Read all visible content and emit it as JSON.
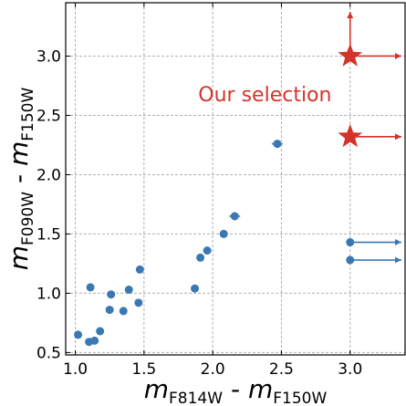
{
  "chart_data": {
    "type": "scatter",
    "xlabel": {
      "main": "m",
      "sub1": "F814W",
      "sep": " - ",
      "main2": "m",
      "sub2": "F150W"
    },
    "ylabel": {
      "main": "m",
      "sub1": "F090W",
      "sep": " - ",
      "main2": "m",
      "sub2": "F150W"
    },
    "xlim": [
      0.93,
      3.4
    ],
    "ylim": [
      0.48,
      3.45
    ],
    "xticks": [
      "1.0",
      "1.5",
      "2.0",
      "2.5",
      "3.0"
    ],
    "yticks": [
      "0.5",
      "1.0",
      "1.5",
      "2.0",
      "2.5",
      "3.0"
    ],
    "grid": true,
    "colors": {
      "points": "#3a78b4",
      "selection": "#d3342a",
      "grid": "#b0b0b0"
    },
    "points": [
      {
        "x": 1.02,
        "y": 0.65
      },
      {
        "x": 1.1,
        "y": 0.59
      },
      {
        "x": 1.14,
        "y": 0.6
      },
      {
        "x": 1.18,
        "y": 0.68
      },
      {
        "x": 1.11,
        "y": 1.05
      },
      {
        "x": 1.25,
        "y": 0.86
      },
      {
        "x": 1.26,
        "y": 0.99
      },
      {
        "x": 1.35,
        "y": 0.85
      },
      {
        "x": 1.39,
        "y": 1.03
      },
      {
        "x": 1.46,
        "y": 0.92
      },
      {
        "x": 1.47,
        "y": 1.2
      },
      {
        "x": 1.87,
        "y": 1.04
      },
      {
        "x": 1.91,
        "y": 1.3
      },
      {
        "x": 1.96,
        "y": 1.36
      },
      {
        "x": 2.08,
        "y": 1.5
      },
      {
        "x": 2.16,
        "y": 1.65,
        "xerr": 0.04
      },
      {
        "x": 2.47,
        "y": 2.26,
        "xerr": 0.04
      }
    ],
    "lower_limits": [
      {
        "x": 3.0,
        "y": 1.43
      },
      {
        "x": 3.0,
        "y": 1.28
      }
    ],
    "selection": [
      {
        "x": 3.0,
        "y": 3.0,
        "arrows": [
          "right",
          "up"
        ]
      },
      {
        "x": 3.0,
        "y": 2.32,
        "arrows": [
          "right"
        ]
      }
    ],
    "annotation": {
      "text": "Our selection",
      "x": 2.38,
      "y": 2.62
    }
  }
}
